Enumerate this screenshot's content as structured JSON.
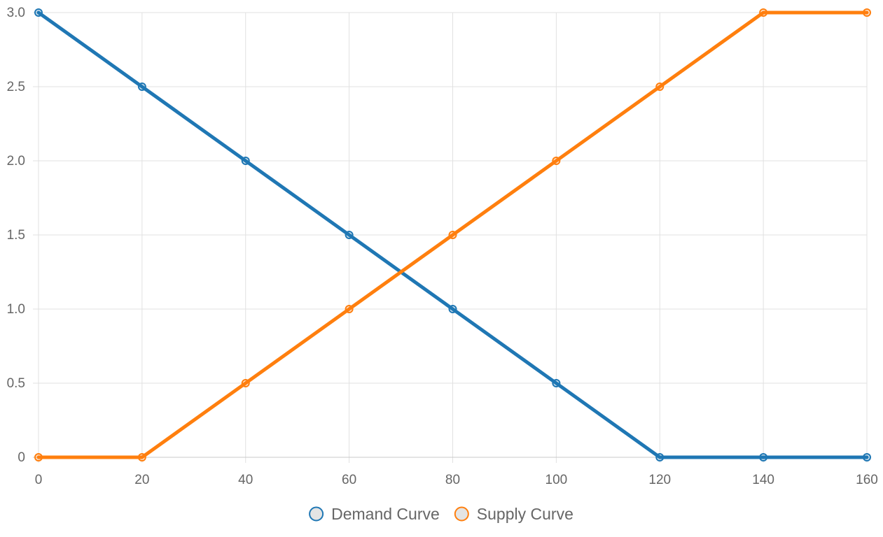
{
  "chart_data": {
    "type": "line",
    "x": [
      0,
      20,
      40,
      60,
      80,
      100,
      120,
      140,
      160
    ],
    "xlim": [
      0,
      160
    ],
    "ylim": [
      0,
      3.0
    ],
    "x_ticks": [
      "0",
      "20",
      "40",
      "60",
      "80",
      "100",
      "120",
      "140",
      "160"
    ],
    "y_ticks": [
      "0",
      "0.5",
      "1.0",
      "1.5",
      "2.0",
      "2.5",
      "3.0"
    ],
    "grid": true,
    "legend_position": "bottom",
    "series": [
      {
        "name": "Demand Curve",
        "color": "#1f77b4",
        "values": [
          3.0,
          2.5,
          2.0,
          1.5,
          1.0,
          0.5,
          0,
          0,
          0
        ]
      },
      {
        "name": "Supply Curve",
        "color": "#ff7f0e",
        "values": [
          0,
          0,
          0.5,
          1.0,
          1.5,
          2.0,
          2.5,
          3.0,
          3.0
        ]
      }
    ]
  }
}
